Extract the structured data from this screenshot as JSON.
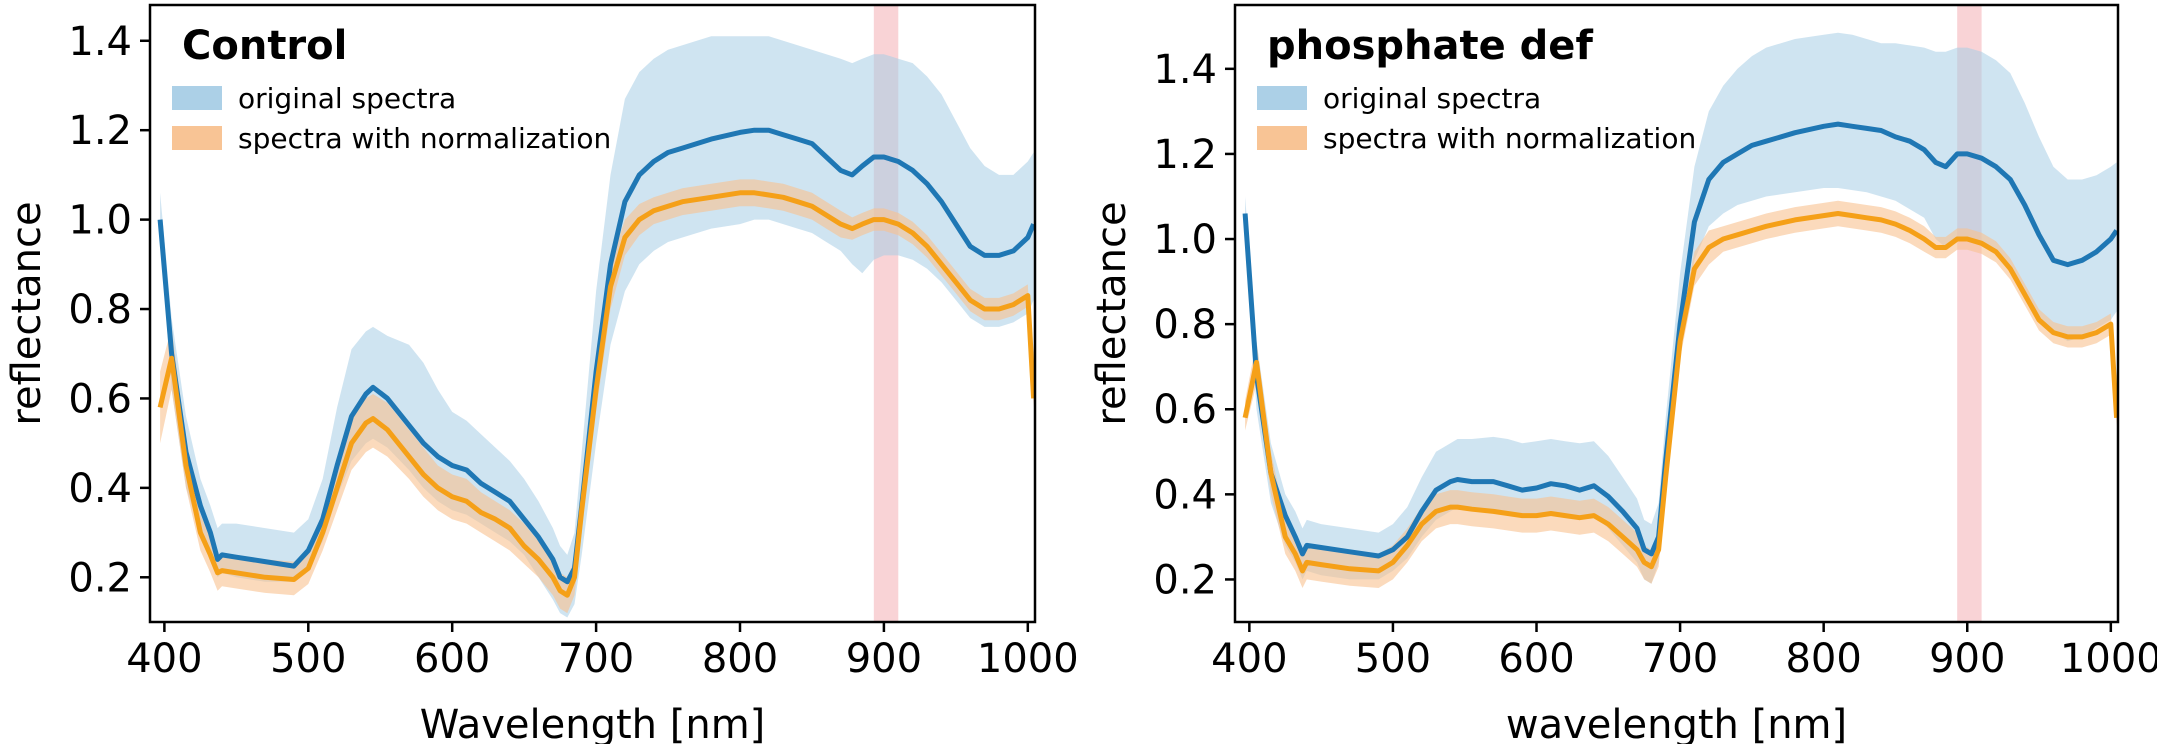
{
  "colors": {
    "original": "#1f77b4",
    "original_band": "#a8cde6",
    "normalized": "#f5a018",
    "normalized_band": "#f8c18f",
    "highlight": "#f4a7ae"
  },
  "chart_data": [
    {
      "type": "line",
      "title": "Control",
      "xlabel": "Wavelength [nm]",
      "ylabel": "reflectance",
      "xlim": [
        390,
        1005
      ],
      "ylim": [
        0.1,
        1.48
      ],
      "xticks": [
        "400",
        "500",
        "600",
        "700",
        "800",
        "900",
        "1000"
      ],
      "yticks": [
        "0.2",
        "0.4",
        "0.6",
        "0.8",
        "1.0",
        "1.2",
        "1.4"
      ],
      "highlight_band": [
        893,
        910
      ],
      "legend_position": "upper-left",
      "legend": [
        "original spectra",
        "spectra with normalization"
      ],
      "x": [
        397,
        405,
        415,
        425,
        432,
        437,
        440,
        450,
        470,
        490,
        500,
        510,
        520,
        530,
        540,
        545,
        555,
        570,
        580,
        590,
        600,
        610,
        620,
        630,
        640,
        650,
        660,
        670,
        675,
        680,
        685,
        690,
        700,
        710,
        720,
        730,
        740,
        750,
        760,
        780,
        800,
        810,
        820,
        830,
        840,
        850,
        860,
        870,
        878,
        885,
        893,
        900,
        910,
        920,
        930,
        940,
        950,
        960,
        970,
        980,
        990,
        1000,
        1004
      ],
      "series": [
        {
          "name": "original spectra",
          "values": [
            1.0,
            0.7,
            0.48,
            0.36,
            0.3,
            0.24,
            0.25,
            0.245,
            0.235,
            0.225,
            0.26,
            0.33,
            0.45,
            0.56,
            0.61,
            0.625,
            0.6,
            0.54,
            0.5,
            0.47,
            0.45,
            0.44,
            0.41,
            0.39,
            0.37,
            0.33,
            0.29,
            0.24,
            0.2,
            0.19,
            0.22,
            0.36,
            0.66,
            0.9,
            1.04,
            1.1,
            1.13,
            1.15,
            1.16,
            1.18,
            1.195,
            1.2,
            1.2,
            1.19,
            1.18,
            1.17,
            1.14,
            1.11,
            1.1,
            1.12,
            1.14,
            1.14,
            1.13,
            1.11,
            1.08,
            1.04,
            0.99,
            0.94,
            0.92,
            0.92,
            0.93,
            0.96,
            0.99
          ],
          "lower": [
            0.97,
            0.62,
            0.4,
            0.3,
            0.25,
            0.2,
            0.21,
            0.2,
            0.19,
            0.19,
            0.22,
            0.28,
            0.38,
            0.46,
            0.5,
            0.51,
            0.49,
            0.44,
            0.4,
            0.37,
            0.35,
            0.34,
            0.32,
            0.3,
            0.28,
            0.25,
            0.2,
            0.15,
            0.12,
            0.11,
            0.14,
            0.25,
            0.5,
            0.72,
            0.84,
            0.9,
            0.93,
            0.95,
            0.96,
            0.98,
            0.99,
            1.0,
            1.0,
            0.99,
            0.98,
            0.97,
            0.95,
            0.93,
            0.9,
            0.88,
            0.91,
            0.92,
            0.92,
            0.91,
            0.89,
            0.86,
            0.82,
            0.78,
            0.76,
            0.76,
            0.77,
            0.79,
            0.82
          ],
          "upper": [
            1.06,
            0.78,
            0.56,
            0.42,
            0.36,
            0.31,
            0.32,
            0.32,
            0.31,
            0.3,
            0.33,
            0.42,
            0.58,
            0.71,
            0.75,
            0.76,
            0.74,
            0.72,
            0.68,
            0.62,
            0.57,
            0.55,
            0.52,
            0.49,
            0.46,
            0.42,
            0.37,
            0.31,
            0.27,
            0.25,
            0.3,
            0.48,
            0.84,
            1.1,
            1.27,
            1.33,
            1.36,
            1.38,
            1.39,
            1.41,
            1.41,
            1.41,
            1.41,
            1.4,
            1.39,
            1.38,
            1.37,
            1.36,
            1.35,
            1.36,
            1.37,
            1.37,
            1.36,
            1.35,
            1.32,
            1.28,
            1.22,
            1.16,
            1.12,
            1.1,
            1.1,
            1.13,
            1.15
          ]
        },
        {
          "name": "spectra with normalization",
          "values": [
            0.58,
            0.69,
            0.45,
            0.3,
            0.25,
            0.21,
            0.215,
            0.21,
            0.2,
            0.195,
            0.22,
            0.3,
            0.4,
            0.5,
            0.545,
            0.555,
            0.53,
            0.47,
            0.43,
            0.4,
            0.38,
            0.37,
            0.345,
            0.33,
            0.31,
            0.27,
            0.24,
            0.2,
            0.17,
            0.16,
            0.2,
            0.35,
            0.62,
            0.85,
            0.96,
            1.0,
            1.02,
            1.03,
            1.04,
            1.05,
            1.06,
            1.06,
            1.055,
            1.05,
            1.04,
            1.03,
            1.01,
            0.99,
            0.98,
            0.99,
            1.0,
            1.0,
            0.99,
            0.97,
            0.94,
            0.9,
            0.86,
            0.82,
            0.8,
            0.8,
            0.81,
            0.83,
            0.6
          ],
          "lower": [
            0.5,
            0.62,
            0.4,
            0.26,
            0.21,
            0.17,
            0.18,
            0.175,
            0.165,
            0.16,
            0.185,
            0.26,
            0.35,
            0.44,
            0.48,
            0.49,
            0.47,
            0.42,
            0.38,
            0.35,
            0.33,
            0.32,
            0.3,
            0.28,
            0.26,
            0.23,
            0.2,
            0.16,
            0.13,
            0.12,
            0.16,
            0.3,
            0.57,
            0.8,
            0.92,
            0.965,
            0.99,
            1.0,
            1.01,
            1.02,
            1.03,
            1.03,
            1.025,
            1.02,
            1.01,
            1.0,
            0.98,
            0.96,
            0.955,
            0.965,
            0.975,
            0.975,
            0.965,
            0.945,
            0.915,
            0.875,
            0.835,
            0.795,
            0.775,
            0.775,
            0.785,
            0.805,
            0.58
          ],
          "upper": [
            0.66,
            0.76,
            0.5,
            0.34,
            0.29,
            0.25,
            0.255,
            0.25,
            0.24,
            0.235,
            0.26,
            0.34,
            0.45,
            0.56,
            0.6,
            0.61,
            0.59,
            0.53,
            0.49,
            0.45,
            0.43,
            0.42,
            0.39,
            0.37,
            0.35,
            0.32,
            0.28,
            0.24,
            0.21,
            0.2,
            0.24,
            0.4,
            0.67,
            0.9,
            1.0,
            1.035,
            1.05,
            1.06,
            1.07,
            1.08,
            1.09,
            1.09,
            1.085,
            1.08,
            1.07,
            1.06,
            1.04,
            1.02,
            1.005,
            1.015,
            1.025,
            1.025,
            1.015,
            0.995,
            0.965,
            0.925,
            0.885,
            0.845,
            0.825,
            0.825,
            0.835,
            0.855,
            0.62
          ]
        }
      ]
    },
    {
      "type": "line",
      "title": "phosphate def",
      "xlabel": "wavelength [nm]",
      "ylabel": "reflectance",
      "xlim": [
        390,
        1005
      ],
      "ylim": [
        0.1,
        1.55
      ],
      "xticks": [
        "400",
        "500",
        "600",
        "700",
        "800",
        "900",
        "1000"
      ],
      "yticks": [
        "0.2",
        "0.4",
        "0.6",
        "0.8",
        "1.0",
        "1.2",
        "1.4"
      ],
      "highlight_band": [
        893,
        910
      ],
      "legend_position": "upper-left",
      "legend": [
        "original spectra",
        "spectra with normalization"
      ],
      "x": [
        397,
        405,
        415,
        425,
        432,
        437,
        440,
        450,
        470,
        490,
        500,
        510,
        520,
        530,
        540,
        545,
        555,
        570,
        580,
        590,
        600,
        610,
        620,
        630,
        640,
        650,
        660,
        670,
        675,
        680,
        685,
        690,
        700,
        710,
        720,
        730,
        740,
        750,
        760,
        780,
        800,
        810,
        820,
        830,
        840,
        850,
        860,
        870,
        878,
        885,
        893,
        900,
        910,
        920,
        930,
        940,
        950,
        960,
        970,
        980,
        990,
        1000,
        1004
      ],
      "series": [
        {
          "name": "original spectra",
          "values": [
            1.06,
            0.68,
            0.45,
            0.35,
            0.3,
            0.26,
            0.28,
            0.275,
            0.265,
            0.255,
            0.27,
            0.3,
            0.36,
            0.41,
            0.43,
            0.435,
            0.43,
            0.43,
            0.42,
            0.41,
            0.415,
            0.425,
            0.42,
            0.41,
            0.42,
            0.395,
            0.36,
            0.32,
            0.27,
            0.26,
            0.3,
            0.48,
            0.8,
            1.04,
            1.14,
            1.18,
            1.2,
            1.22,
            1.23,
            1.25,
            1.265,
            1.27,
            1.265,
            1.26,
            1.255,
            1.24,
            1.23,
            1.21,
            1.18,
            1.17,
            1.2,
            1.2,
            1.19,
            1.17,
            1.14,
            1.08,
            1.01,
            0.95,
            0.94,
            0.95,
            0.97,
            1.0,
            1.02
          ],
          "lower": [
            1.02,
            0.6,
            0.38,
            0.28,
            0.24,
            0.2,
            0.22,
            0.21,
            0.2,
            0.2,
            0.22,
            0.25,
            0.3,
            0.34,
            0.36,
            0.37,
            0.365,
            0.36,
            0.35,
            0.345,
            0.35,
            0.36,
            0.355,
            0.345,
            0.35,
            0.32,
            0.28,
            0.24,
            0.2,
            0.19,
            0.24,
            0.4,
            0.72,
            0.95,
            1.03,
            1.06,
            1.08,
            1.09,
            1.1,
            1.11,
            1.12,
            1.12,
            1.115,
            1.11,
            1.1,
            1.09,
            1.07,
            1.05,
            1.0,
            0.98,
            1.0,
            1.0,
            0.99,
            0.97,
            0.93,
            0.88,
            0.82,
            0.78,
            0.76,
            0.77,
            0.79,
            0.81,
            0.83
          ],
          "upper": [
            1.1,
            0.76,
            0.52,
            0.4,
            0.36,
            0.32,
            0.34,
            0.33,
            0.32,
            0.31,
            0.33,
            0.37,
            0.44,
            0.5,
            0.52,
            0.53,
            0.53,
            0.535,
            0.53,
            0.52,
            0.525,
            0.53,
            0.525,
            0.52,
            0.525,
            0.49,
            0.44,
            0.39,
            0.34,
            0.33,
            0.38,
            0.58,
            0.92,
            1.17,
            1.3,
            1.36,
            1.4,
            1.43,
            1.45,
            1.47,
            1.48,
            1.485,
            1.48,
            1.47,
            1.46,
            1.46,
            1.455,
            1.45,
            1.44,
            1.44,
            1.45,
            1.45,
            1.44,
            1.42,
            1.39,
            1.32,
            1.24,
            1.17,
            1.14,
            1.14,
            1.15,
            1.17,
            1.18
          ]
        },
        {
          "name": "spectra with normalization",
          "values": [
            0.58,
            0.71,
            0.45,
            0.3,
            0.26,
            0.22,
            0.24,
            0.235,
            0.225,
            0.22,
            0.24,
            0.28,
            0.33,
            0.36,
            0.37,
            0.37,
            0.365,
            0.36,
            0.355,
            0.35,
            0.35,
            0.355,
            0.35,
            0.345,
            0.35,
            0.33,
            0.3,
            0.27,
            0.24,
            0.23,
            0.27,
            0.44,
            0.76,
            0.93,
            0.98,
            1.0,
            1.01,
            1.02,
            1.03,
            1.045,
            1.055,
            1.06,
            1.055,
            1.05,
            1.045,
            1.035,
            1.02,
            1.0,
            0.98,
            0.98,
            1.0,
            1.0,
            0.99,
            0.97,
            0.93,
            0.87,
            0.81,
            0.78,
            0.77,
            0.77,
            0.78,
            0.8,
            0.58
          ],
          "lower": [
            0.55,
            0.66,
            0.4,
            0.26,
            0.22,
            0.18,
            0.2,
            0.195,
            0.185,
            0.18,
            0.2,
            0.24,
            0.29,
            0.32,
            0.33,
            0.33,
            0.325,
            0.32,
            0.315,
            0.31,
            0.31,
            0.315,
            0.31,
            0.305,
            0.31,
            0.29,
            0.26,
            0.23,
            0.2,
            0.19,
            0.23,
            0.4,
            0.72,
            0.89,
            0.94,
            0.97,
            0.98,
            0.99,
            1.0,
            1.015,
            1.025,
            1.03,
            1.025,
            1.02,
            1.015,
            1.005,
            0.99,
            0.97,
            0.955,
            0.955,
            0.975,
            0.975,
            0.965,
            0.945,
            0.905,
            0.845,
            0.785,
            0.755,
            0.745,
            0.745,
            0.755,
            0.775,
            0.56
          ],
          "upper": [
            0.62,
            0.76,
            0.5,
            0.34,
            0.3,
            0.26,
            0.28,
            0.275,
            0.265,
            0.26,
            0.28,
            0.32,
            0.37,
            0.4,
            0.41,
            0.41,
            0.405,
            0.4,
            0.395,
            0.39,
            0.39,
            0.395,
            0.39,
            0.385,
            0.39,
            0.37,
            0.34,
            0.31,
            0.28,
            0.27,
            0.31,
            0.48,
            0.8,
            0.97,
            1.02,
            1.03,
            1.04,
            1.05,
            1.06,
            1.075,
            1.085,
            1.09,
            1.085,
            1.08,
            1.075,
            1.065,
            1.05,
            1.03,
            1.005,
            1.005,
            1.025,
            1.025,
            1.015,
            0.995,
            0.955,
            0.895,
            0.835,
            0.805,
            0.795,
            0.795,
            0.805,
            0.825,
            0.6
          ]
        }
      ]
    }
  ]
}
